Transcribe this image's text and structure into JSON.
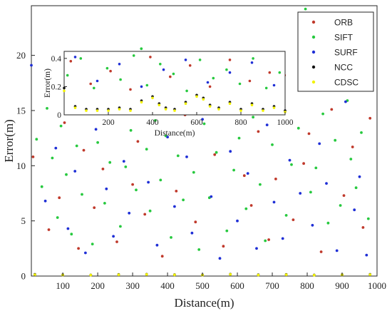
{
  "chart_data": [
    {
      "type": "scatter",
      "role": "main",
      "title": "",
      "xlabel": "Distance(m)",
      "ylabel": "Error(m)",
      "xlim": [
        10,
        1000
      ],
      "ylim": [
        0,
        24.5
      ],
      "xticks": [
        100,
        200,
        300,
        400,
        500,
        600,
        700,
        800,
        900,
        1000
      ],
      "yticks": [
        0,
        5,
        10,
        15,
        20
      ],
      "grid": false,
      "legend_position": "top-right",
      "series": [
        {
          "name": "ORB",
          "color": "#c0392b",
          "x": [
            15,
            60,
            90,
            105,
            145,
            160,
            190,
            215,
            240,
            255,
            270,
            300,
            315,
            335,
            360,
            385,
            425,
            450,
            480,
            515,
            535,
            560,
            585,
            620,
            640,
            660,
            690,
            710,
            735,
            760,
            790,
            805,
            840,
            870,
            905,
            930,
            960,
            980
          ],
          "y": [
            10.8,
            4.2,
            7.1,
            13.9,
            2.5,
            11.4,
            6.2,
            9.7,
            15.8,
            3.1,
            17.6,
            8.3,
            12.2,
            5.6,
            19.4,
            1.8,
            7.7,
            14.6,
            4.9,
            20.1,
            11.0,
            2.7,
            16.2,
            9.1,
            6.4,
            13.1,
            3.3,
            8.8,
            18.2,
            5.1,
            10.2,
            12.9,
            2.2,
            15.1,
            7.3,
            11.7,
            4.4,
            14.3
          ]
        },
        {
          "name": "SIFT",
          "color": "#27c93f",
          "x": [
            25,
            40,
            55,
            70,
            85,
            95,
            110,
            125,
            140,
            155,
            170,
            185,
            200,
            220,
            235,
            250,
            265,
            280,
            295,
            310,
            325,
            340,
            350,
            365,
            380,
            395,
            410,
            430,
            445,
            460,
            475,
            490,
            505,
            520,
            540,
            555,
            570,
            590,
            605,
            625,
            645,
            665,
            680,
            700,
            720,
            740,
            755,
            775,
            795,
            810,
            825,
            845,
            860,
            880,
            895,
            915,
            925,
            940,
            955,
            975
          ],
          "y": [
            12.4,
            8.1,
            15.2,
            10.7,
            5.3,
            13.6,
            9.2,
            3.8,
            11.8,
            7.4,
            14.9,
            2.9,
            12.1,
            6.6,
            10.3,
            16.8,
            4.5,
            9.9,
            13.2,
            7.8,
            20.6,
            11.5,
            5.9,
            14.1,
            8.7,
            12.7,
            3.5,
            10.9,
            6.9,
            15.5,
            9.4,
            2.4,
            13.8,
            7.1,
            11.2,
            17.4,
            4.1,
            9.6,
            12.5,
            6.1,
            14.4,
            8.3,
            3.2,
            11.9,
            16.1,
            5.5,
            10.1,
            13.4,
            24.2,
            7.6,
            9.8,
            14.7,
            4.8,
            12.3,
            6.4,
            15.9,
            10.6,
            8.0,
            13.0,
            5.2
          ]
        },
        {
          "name": "SURF",
          "color": "#1f2fd6",
          "x": [
            10,
            50,
            80,
            115,
            135,
            165,
            195,
            225,
            245,
            275,
            290,
            320,
            345,
            370,
            400,
            420,
            455,
            470,
            500,
            525,
            550,
            580,
            600,
            630,
            655,
            685,
            705,
            730,
            750,
            780,
            815,
            835,
            855,
            885,
            910,
            935,
            950,
            970
          ],
          "y": [
            19.1,
            6.8,
            11.6,
            4.3,
            9.5,
            2.1,
            13.3,
            7.9,
            3.6,
            10.4,
            5.7,
            15.4,
            8.5,
            2.8,
            12.6,
            6.3,
            10.8,
            3.9,
            14.2,
            7.2,
            1.6,
            11.3,
            5.0,
            9.3,
            2.5,
            13.7,
            6.7,
            3.4,
            10.5,
            7.5,
            4.6,
            12.0,
            8.4,
            2.3,
            15.8,
            6.0,
            9.0,
            1.9
          ]
        },
        {
          "name": "NCC",
          "color": "#111111",
          "x": [
            20,
            100,
            180,
            260,
            340,
            420,
            500,
            580,
            660,
            740,
            820,
            900,
            980
          ],
          "y": [
            0.15,
            0.12,
            0.1,
            0.14,
            0.16,
            0.13,
            0.11,
            0.17,
            0.12,
            0.14,
            0.1,
            0.13,
            0.15
          ]
        },
        {
          "name": "CDSC",
          "color": "#f2f200",
          "x": [
            20,
            100,
            180,
            260,
            340,
            420,
            500,
            580,
            660,
            740,
            820,
            900,
            980
          ],
          "y": [
            0.12,
            0.1,
            0.09,
            0.12,
            0.14,
            0.11,
            0.09,
            0.15,
            0.1,
            0.12,
            0.08,
            0.11,
            0.13
          ]
        }
      ]
    },
    {
      "type": "scatter",
      "role": "inset",
      "title": "",
      "xlabel": "Distance(m)",
      "ylabel": "Error(m)",
      "xlim": [
        0,
        1000
      ],
      "ylim": [
        0,
        0.45
      ],
      "xticks": [
        200,
        400,
        600,
        800,
        1000
      ],
      "yticks": [
        0,
        0.2,
        0.4
      ],
      "grid": false,
      "series": [
        {
          "name": "ORB",
          "color": "#c0392b",
          "x": [
            30,
            120,
            210,
            300,
            390,
            480,
            570,
            660,
            750,
            840,
            930
          ],
          "y": [
            0.38,
            0.22,
            0.31,
            0.18,
            0.41,
            0.27,
            0.35,
            0.2,
            0.39,
            0.24,
            0.3
          ]
        },
        {
          "name": "SIFT",
          "color": "#27c93f",
          "x": [
            15,
            75,
            135,
            195,
            255,
            315,
            375,
            435,
            495,
            555,
            615,
            675,
            735,
            795,
            855,
            915,
            975
          ],
          "y": [
            0.28,
            0.4,
            0.19,
            0.33,
            0.25,
            0.42,
            0.21,
            0.36,
            0.29,
            0.17,
            0.39,
            0.26,
            0.32,
            0.22,
            0.4,
            0.19,
            0.3
          ]
        },
        {
          "name": "SURF",
          "color": "#1f2fd6",
          "x": [
            50,
            150,
            250,
            350,
            450,
            550,
            650,
            750,
            850,
            950
          ],
          "y": [
            0.41,
            0.24,
            0.36,
            0.2,
            0.32,
            0.39,
            0.23,
            0.3,
            0.37,
            0.21
          ]
        },
        {
          "name": "NCC",
          "color": "#111111",
          "x": [
            0,
            50,
            100,
            150,
            200,
            250,
            300,
            350,
            400,
            430,
            460,
            500,
            550,
            600,
            630,
            660,
            700,
            750,
            800,
            850,
            900,
            950,
            1000
          ],
          "y": [
            0.19,
            0.06,
            0.04,
            0.04,
            0.04,
            0.05,
            0.04,
            0.1,
            0.13,
            0.08,
            0.05,
            0.04,
            0.09,
            0.14,
            0.12,
            0.07,
            0.05,
            0.09,
            0.04,
            0.08,
            0.04,
            0.06,
            0.03
          ]
        },
        {
          "name": "CDSC",
          "color": "#f2f200",
          "x": [
            0,
            50,
            100,
            150,
            200,
            250,
            300,
            350,
            400,
            430,
            460,
            500,
            550,
            600,
            630,
            660,
            700,
            750,
            800,
            850,
            900,
            950,
            1000
          ],
          "y": [
            0.17,
            0.05,
            0.03,
            0.03,
            0.03,
            0.04,
            0.03,
            0.09,
            0.12,
            0.07,
            0.04,
            0.03,
            0.08,
            0.13,
            0.11,
            0.06,
            0.04,
            0.08,
            0.03,
            0.07,
            0.03,
            0.05,
            0.02
          ]
        }
      ]
    }
  ]
}
